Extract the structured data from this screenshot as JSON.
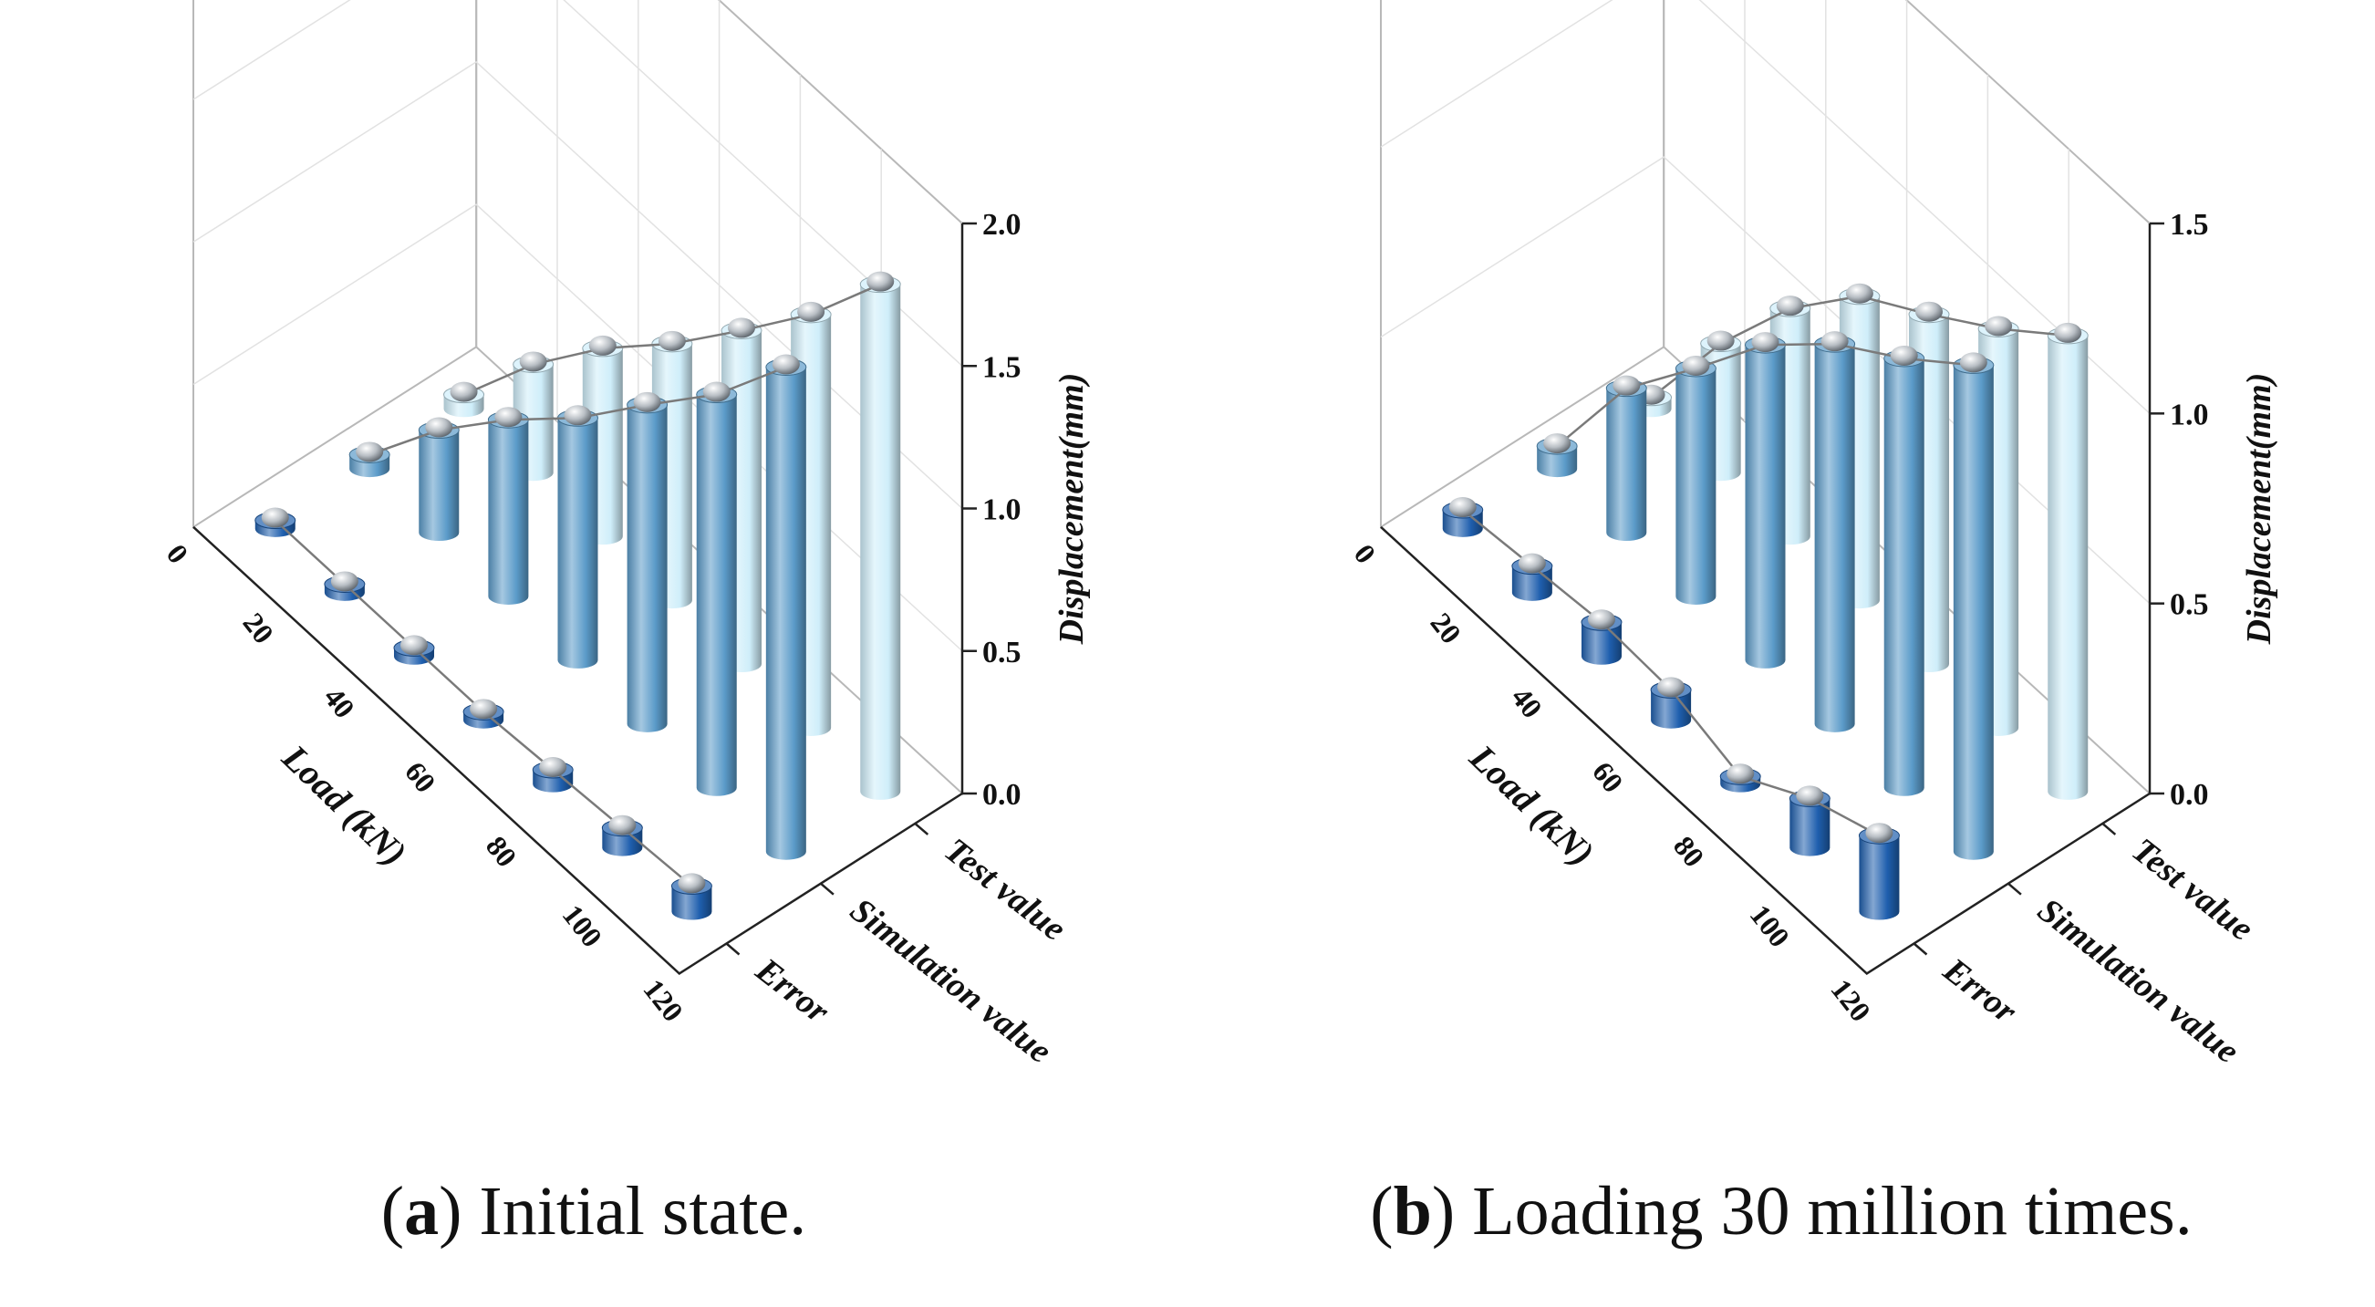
{
  "chart_data": [
    {
      "type": "bar3d",
      "panel": "a",
      "caption_letter": "a",
      "caption_text": "Initial state.",
      "zlabel": "Displacement(mm)",
      "xlabel": "Load (kN)",
      "zlim": [
        0,
        2.0
      ],
      "z_ticks": [
        "0.0",
        "0.5",
        "1.0",
        "1.5",
        "2.0"
      ],
      "x_ticks": [
        "0",
        "20",
        "40",
        "60",
        "80",
        "100",
        "120"
      ],
      "loads": [
        120,
        100,
        80,
        60,
        40,
        20,
        0
      ],
      "series": [
        {
          "name": "Test value",
          "color": "#cfeefa",
          "values": [
            1.78,
            1.45,
            1.17,
            0.9,
            0.66,
            0.38,
            0.05
          ]
        },
        {
          "name": "Simulation value",
          "color": "#5b9bc9",
          "values": [
            1.7,
            1.38,
            1.12,
            0.85,
            0.62,
            0.36,
            0.05
          ]
        },
        {
          "name": "Error",
          "color": "#1f5fae",
          "values": [
            0.09,
            0.07,
            0.05,
            0.03,
            0.03,
            0.03,
            0.03
          ]
        }
      ]
    },
    {
      "type": "bar3d",
      "panel": "b",
      "caption_letter": "b",
      "caption_text": "Loading 30 million times.",
      "zlabel": "Displacement(mm)",
      "xlabel": "Load (kN)",
      "zlim": [
        0,
        1.5
      ],
      "z_ticks": [
        "0.0",
        "0.5",
        "1.0",
        "1.5"
      ],
      "x_ticks": [
        "0",
        "20",
        "40",
        "60",
        "80",
        "100",
        "120"
      ],
      "loads": [
        120,
        100,
        80,
        60,
        40,
        20,
        0
      ],
      "series": [
        {
          "name": "Test value",
          "color": "#cfeefa",
          "values": [
            1.2,
            1.05,
            0.92,
            0.8,
            0.6,
            0.34,
            0.03
          ]
        },
        {
          "name": "Simulation value",
          "color": "#5b9bc9",
          "values": [
            1.28,
            1.13,
            1.0,
            0.83,
            0.6,
            0.38,
            0.06
          ]
        },
        {
          "name": "Error",
          "color": "#1f5fae",
          "values": [
            0.2,
            0.13,
            0.02,
            0.08,
            0.09,
            0.07,
            0.05
          ]
        }
      ]
    }
  ]
}
